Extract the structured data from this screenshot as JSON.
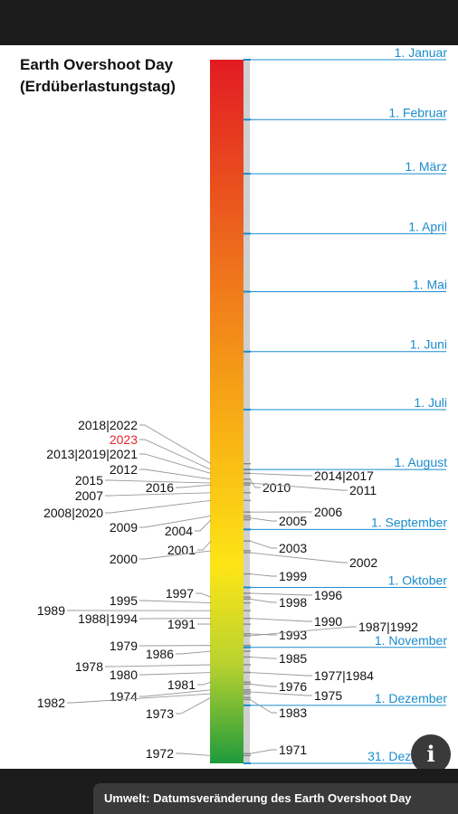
{
  "caption": "Umwelt: Datumsveränderung des Earth Overshoot Day",
  "info_icon": "info-icon",
  "colors": {
    "month": "#1a8ccc",
    "highlight": "#e4262c",
    "leader": "#999999",
    "text": "#111111"
  },
  "chart_data": {
    "type": "timeline",
    "title": "Earth Overshoot Day",
    "subtitle": "(Erdüberlastungstag)",
    "axis_range": [
      "1. Januar",
      "31. Dezember"
    ],
    "months": [
      {
        "label": "1. Januar",
        "day": 1
      },
      {
        "label": "1. Februar",
        "day": 32
      },
      {
        "label": "1. März",
        "day": 60
      },
      {
        "label": "1. April",
        "day": 91
      },
      {
        "label": "1. Mai",
        "day": 121
      },
      {
        "label": "1. Juni",
        "day": 152
      },
      {
        "label": "1. Juli",
        "day": 182
      },
      {
        "label": "1. August",
        "day": 213
      },
      {
        "label": "1. September",
        "day": 244
      },
      {
        "label": "1. Oktober",
        "day": 274
      },
      {
        "label": "1. November",
        "day": 305
      },
      {
        "label": "1. Dezember",
        "day": 335
      },
      {
        "label": "31. Dezember",
        "day": 365
      }
    ],
    "years": [
      {
        "label": "2018|2022",
        "day": 210,
        "side": "left"
      },
      {
        "label": "2023",
        "day": 213,
        "side": "left",
        "highlight": true
      },
      {
        "label": "2013|2019|2021",
        "day": 215,
        "side": "left"
      },
      {
        "label": "2012",
        "day": 218,
        "side": "left"
      },
      {
        "label": "2015",
        "day": 220,
        "side": "left"
      },
      {
        "label": "2016",
        "day": 221,
        "side": "left"
      },
      {
        "label": "2007",
        "day": 225,
        "side": "left"
      },
      {
        "label": "2008|2020",
        "day": 229,
        "side": "left"
      },
      {
        "label": "2009",
        "day": 237,
        "side": "left"
      },
      {
        "label": "2004",
        "day": 239,
        "side": "left"
      },
      {
        "label": "2001",
        "day": 250,
        "side": "left"
      },
      {
        "label": "2000",
        "day": 255,
        "side": "left"
      },
      {
        "label": "1997",
        "day": 279,
        "side": "left"
      },
      {
        "label": "1995",
        "day": 282,
        "side": "left"
      },
      {
        "label": "1989",
        "day": 286,
        "side": "left"
      },
      {
        "label": "1988|1994",
        "day": 290,
        "side": "left"
      },
      {
        "label": "1991",
        "day": 293,
        "side": "left"
      },
      {
        "label": "1979",
        "day": 304,
        "side": "left"
      },
      {
        "label": "1986",
        "day": 307,
        "side": "left"
      },
      {
        "label": "1978",
        "day": 314,
        "side": "left"
      },
      {
        "label": "1980",
        "day": 318,
        "side": "left"
      },
      {
        "label": "1981",
        "day": 323,
        "side": "left"
      },
      {
        "label": "1974",
        "day": 327,
        "side": "left"
      },
      {
        "label": "1982",
        "day": 329,
        "side": "left"
      },
      {
        "label": "1973",
        "day": 331,
        "side": "left"
      },
      {
        "label": "1972",
        "day": 361,
        "side": "left"
      },
      {
        "label": "2014|2017",
        "day": 215,
        "side": "right"
      },
      {
        "label": "2010",
        "day": 218,
        "side": "right"
      },
      {
        "label": "2011",
        "day": 220,
        "side": "right"
      },
      {
        "label": "2006",
        "day": 235,
        "side": "right"
      },
      {
        "label": "2005",
        "day": 238,
        "side": "right"
      },
      {
        "label": "2003",
        "day": 250,
        "side": "right"
      },
      {
        "label": "2002",
        "day": 256,
        "side": "right"
      },
      {
        "label": "1999",
        "day": 267,
        "side": "right"
      },
      {
        "label": "1996",
        "day": 277,
        "side": "right"
      },
      {
        "label": "1998",
        "day": 280,
        "side": "right"
      },
      {
        "label": "1990",
        "day": 290,
        "side": "right"
      },
      {
        "label": "1993",
        "day": 298,
        "side": "right"
      },
      {
        "label": "1987|1992",
        "day": 299,
        "side": "right"
      },
      {
        "label": "1985",
        "day": 310,
        "side": "right"
      },
      {
        "label": "1977|1984",
        "day": 318,
        "side": "right"
      },
      {
        "label": "1976",
        "day": 324,
        "side": "right"
      },
      {
        "label": "1975",
        "day": 328,
        "side": "right"
      },
      {
        "label": "1983",
        "day": 332,
        "side": "right"
      },
      {
        "label": "1971",
        "day": 360,
        "side": "right"
      }
    ]
  }
}
